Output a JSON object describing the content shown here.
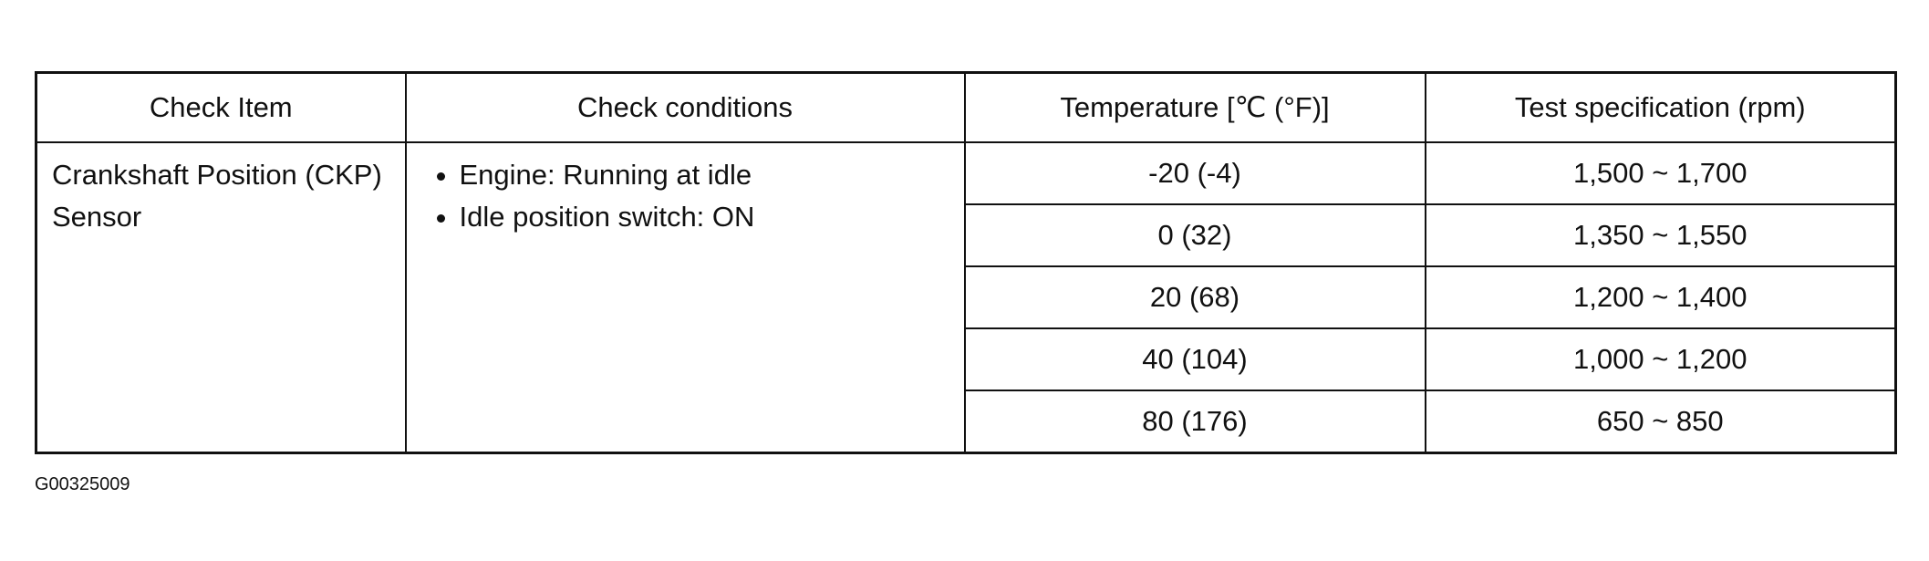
{
  "table": {
    "headers": [
      "Check Item",
      "Check conditions",
      "Temperature [℃ (°F)]",
      "Test specification (rpm)"
    ],
    "check_item": "Crankshaft Position (CKP) Sensor",
    "conditions": [
      "Engine: Running at idle",
      "Idle position switch: ON"
    ],
    "rows": [
      {
        "temperature": "-20 (-4)",
        "spec": "1,500 ~ 1,700"
      },
      {
        "temperature": "0 (32)",
        "spec": "1,350 ~ 1,550"
      },
      {
        "temperature": "20 (68)",
        "spec": "1,200 ~ 1,400"
      },
      {
        "temperature": "40 (104)",
        "spec": "1,000 ~ 1,200"
      },
      {
        "temperature": "80 (176)",
        "spec": "650 ~ 850"
      }
    ]
  },
  "figure_id": "G00325009"
}
